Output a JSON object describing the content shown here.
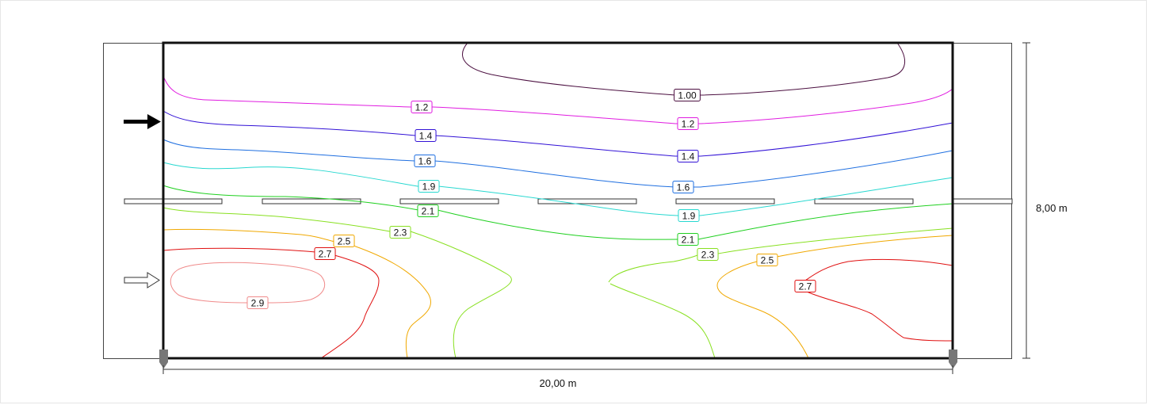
{
  "dimensions": {
    "width_label": "20,00 m",
    "height_label": "8,00 m"
  },
  "contours": [
    {
      "id": "c100",
      "level": "1.00",
      "color": "#4b0f40",
      "labels": [
        "1.00"
      ]
    },
    {
      "id": "c12",
      "level": "1.2",
      "color": "#e01ce0",
      "labels": [
        "1.2",
        "1.2"
      ]
    },
    {
      "id": "c14",
      "level": "1.4",
      "color": "#3212d6",
      "labels": [
        "1.4",
        "1.4"
      ]
    },
    {
      "id": "c16",
      "level": "1.6",
      "color": "#1f6fe0",
      "labels": [
        "1.6",
        "1.6"
      ]
    },
    {
      "id": "c19",
      "level": "1.9",
      "color": "#28d8d0",
      "labels": [
        "1.9",
        "1.9"
      ]
    },
    {
      "id": "c21",
      "level": "2.1",
      "color": "#20d020",
      "labels": [
        "2.1",
        "2.1"
      ]
    },
    {
      "id": "c23",
      "level": "2.3",
      "color": "#88e020",
      "labels": [
        "2.3",
        "2.3"
      ]
    },
    {
      "id": "c25",
      "level": "2.5",
      "color": "#f0a800",
      "labels": [
        "2.5",
        "2.5"
      ]
    },
    {
      "id": "c27",
      "level": "2.7",
      "color": "#e01010",
      "labels": [
        "2.7",
        "2.7"
      ]
    },
    {
      "id": "c29",
      "level": "2.9",
      "color": "#f08a8a",
      "labels": [
        "2.9"
      ]
    }
  ]
}
